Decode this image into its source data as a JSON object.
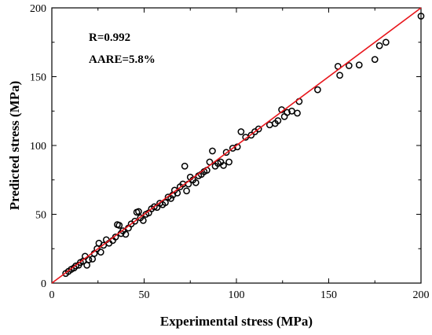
{
  "chart_data": {
    "type": "scatter",
    "title": "",
    "xlabel": "Experimental stress (MPa)",
    "ylabel": "Predicted stress (MPa)",
    "xlim": [
      0,
      200
    ],
    "ylim": [
      0,
      200
    ],
    "xticks": [
      "0",
      "50",
      "100",
      "150",
      "200"
    ],
    "yticks": [
      "0",
      "50",
      "100",
      "150",
      "200"
    ],
    "grid": false,
    "annotations": [
      "R=0.992",
      "AARE=5.8%"
    ],
    "marker": "open-circle",
    "colors": {
      "points": "#000000",
      "fit_line": "#e8151b",
      "axes": "#000000"
    },
    "fit_line": {
      "from": [
        0,
        0
      ],
      "to": [
        200,
        200
      ]
    },
    "points": [
      [
        7.5,
        7
      ],
      [
        9,
        8.5
      ],
      [
        10.5,
        10
      ],
      [
        12,
        11
      ],
      [
        13,
        12.5
      ],
      [
        14.5,
        13
      ],
      [
        15.5,
        15
      ],
      [
        17,
        16
      ],
      [
        18,
        19.5
      ],
      [
        19,
        13
      ],
      [
        20,
        17
      ],
      [
        22,
        17.5
      ],
      [
        23,
        21.5
      ],
      [
        24.5,
        25
      ],
      [
        25.5,
        29
      ],
      [
        26.5,
        22.5
      ],
      [
        28,
        27.5
      ],
      [
        29.5,
        31.5
      ],
      [
        31,
        29
      ],
      [
        33,
        31
      ],
      [
        34.5,
        33.5
      ],
      [
        35.5,
        42.5
      ],
      [
        36.5,
        42
      ],
      [
        37.5,
        36
      ],
      [
        38.5,
        38
      ],
      [
        40,
        35.5
      ],
      [
        41.5,
        40
      ],
      [
        43,
        43
      ],
      [
        45,
        45
      ],
      [
        46,
        51.5
      ],
      [
        47,
        52
      ],
      [
        48,
        47.5
      ],
      [
        49.5,
        45.5
      ],
      [
        51,
        50
      ],
      [
        52.5,
        51
      ],
      [
        54,
        54
      ],
      [
        55.5,
        55.5
      ],
      [
        57,
        55
      ],
      [
        58.5,
        58
      ],
      [
        60,
        57
      ],
      [
        61.5,
        58.5
      ],
      [
        63,
        62.5
      ],
      [
        64.5,
        61.5
      ],
      [
        65.5,
        64
      ],
      [
        66.5,
        67.5
      ],
      [
        68,
        65.5
      ],
      [
        69.5,
        70
      ],
      [
        71,
        72
      ],
      [
        72,
        85
      ],
      [
        73,
        67
      ],
      [
        74,
        72
      ],
      [
        75,
        77
      ],
      [
        76.5,
        75
      ],
      [
        78,
        73
      ],
      [
        79.5,
        78
      ],
      [
        81,
        79
      ],
      [
        82.5,
        81
      ],
      [
        84,
        82
      ],
      [
        85.5,
        88
      ],
      [
        87,
        96
      ],
      [
        88.5,
        85
      ],
      [
        90,
        87
      ],
      [
        91.5,
        88
      ],
      [
        93,
        85.5
      ],
      [
        94.5,
        95
      ],
      [
        96,
        88
      ],
      [
        98,
        98
      ],
      [
        100.5,
        99
      ],
      [
        102.5,
        110
      ],
      [
        105,
        106
      ],
      [
        108,
        107.5
      ],
      [
        110,
        110
      ],
      [
        112,
        112
      ],
      [
        118,
        115
      ],
      [
        121,
        116
      ],
      [
        122.5,
        118
      ],
      [
        124.5,
        126
      ],
      [
        126,
        121
      ],
      [
        127.5,
        124
      ],
      [
        130,
        125
      ],
      [
        133,
        123.5
      ],
      [
        134,
        132
      ],
      [
        144,
        140.5
      ],
      [
        155,
        157.5
      ],
      [
        156,
        151
      ],
      [
        161,
        158
      ],
      [
        166.5,
        158.5
      ],
      [
        175,
        162.5
      ],
      [
        177.5,
        172.5
      ],
      [
        181,
        175
      ],
      [
        200,
        194
      ]
    ]
  }
}
